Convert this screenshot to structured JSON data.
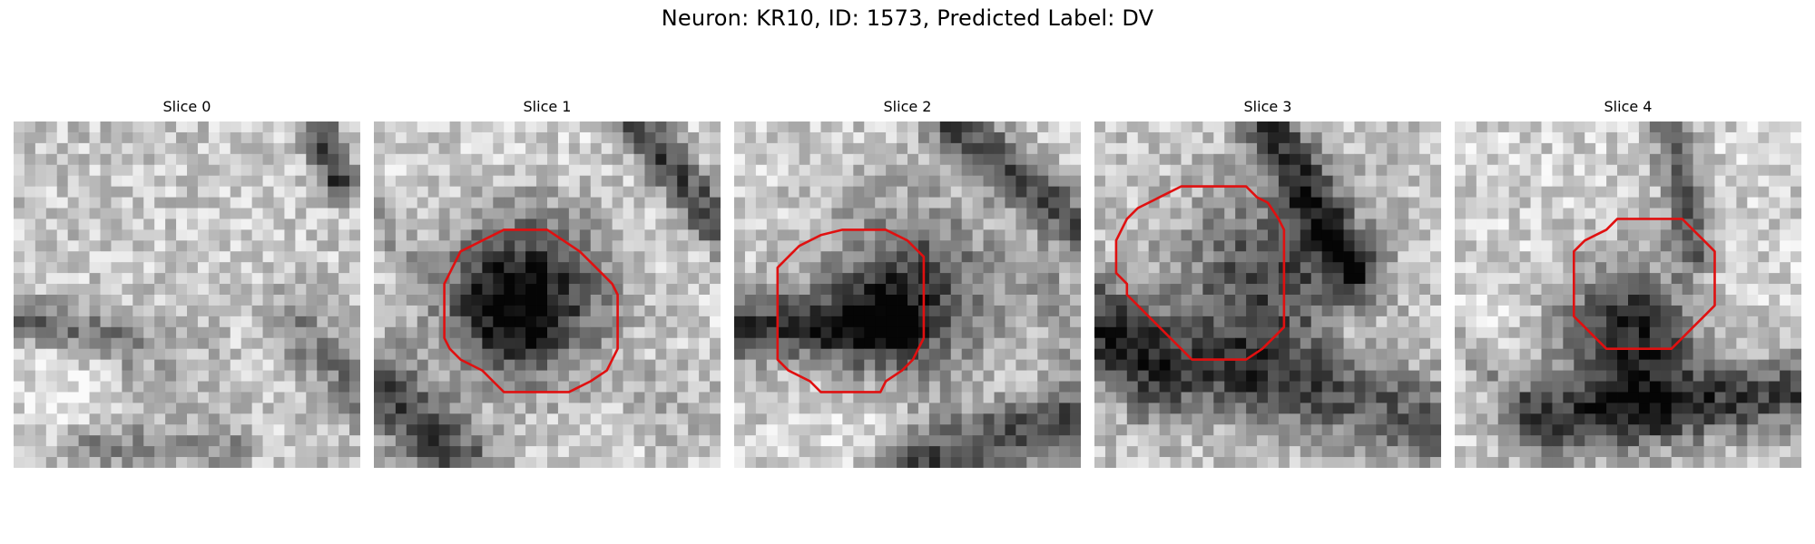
{
  "figure": {
    "title": "Neuron: KR10, ID: 1573, Predicted Label: DV"
  },
  "panels": [
    {
      "title": "Slice 0"
    },
    {
      "title": "Slice 1"
    },
    {
      "title": "Slice 2"
    },
    {
      "title": "Slice 3"
    },
    {
      "title": "Slice 4"
    }
  ],
  "colors": {
    "background": "#ffffff",
    "contour": "#e01010",
    "colormap": "grayscale"
  }
}
